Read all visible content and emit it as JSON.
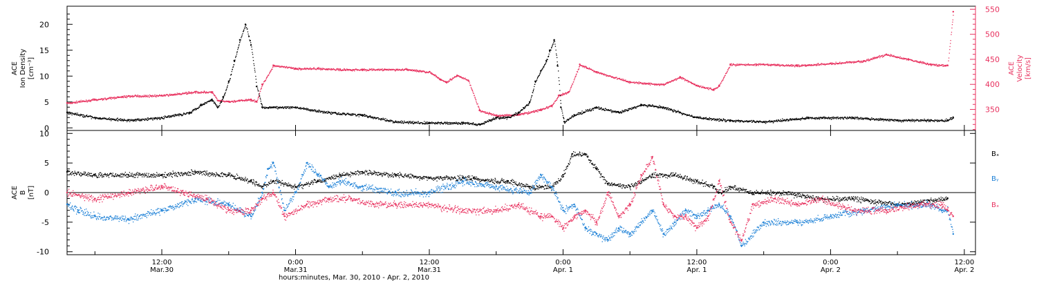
{
  "x_axis": {
    "label": "hours:minutes, Mar. 30, 2010 - Apr.  2, 2010",
    "ticks": [
      {
        "time": "12:00",
        "date": "Mar.30",
        "hours": 12
      },
      {
        "time": "0:00",
        "date": "Mar.31",
        "hours": 24
      },
      {
        "time": "12:00",
        "date": "Mar.31",
        "hours": 36
      },
      {
        "time": "0:00",
        "date": "Apr. 1",
        "hours": 48
      },
      {
        "time": "12:00",
        "date": "Apr. 1",
        "hours": 60
      },
      {
        "time": "0:00",
        "date": "Apr. 2",
        "hours": 72
      },
      {
        "time": "12:00",
        "date": "Apr. 2",
        "hours": 84
      }
    ]
  },
  "colors": {
    "black": "#000000",
    "red": "#e8305e",
    "blue": "#1a7fd6"
  },
  "chart_data": [
    {
      "type": "scatter",
      "panel": "top",
      "x_unit": "hours since Mar. 30, 2010 00:00",
      "xlim": [
        3.5,
        85
      ],
      "left_axis": {
        "label_lines": [
          "ACE",
          "Ion Density",
          "[cm⁻³]"
        ],
        "ylim": [
          -0.5,
          23.5
        ],
        "ticks": [
          0,
          5,
          10,
          15,
          20
        ]
      },
      "right_axis": {
        "label_lines": [
          "ACE",
          "Velocity",
          "[km/s]"
        ],
        "ylim": [
          308,
          556
        ],
        "ticks": [
          350,
          400,
          450,
          500,
          550
        ]
      },
      "series": [
        {
          "name": "",
          "axis": "left",
          "color": "black",
          "x": [
            3.5,
            6,
            9,
            12,
            14.5,
            15.5,
            16.5,
            17,
            17.5,
            18,
            18.5,
            19,
            19.5,
            20,
            20.5,
            21,
            22,
            24,
            27,
            30,
            33,
            36,
            39,
            40.5,
            42,
            43,
            44,
            45,
            45.5,
            46,
            46.5,
            46.8,
            47.2,
            47.5,
            47.8,
            48.1,
            49,
            51,
            53,
            55,
            57,
            58.5,
            60,
            63,
            66,
            70,
            74,
            78,
            81,
            82.5,
            83
          ],
          "y": [
            3,
            2,
            1.5,
            2,
            3,
            4.5,
            5.5,
            4,
            6,
            9,
            13,
            17,
            20,
            16,
            8,
            4,
            4,
            4,
            3,
            2.5,
            1.2,
            1,
            1,
            0.7,
            2,
            2,
            3,
            5,
            9,
            11,
            13,
            15,
            17,
            12,
            4,
            1.2,
            2.5,
            4,
            3,
            4.5,
            4,
            3,
            2,
            1.5,
            1.2,
            2,
            2,
            1.5,
            1.5,
            1.5,
            2
          ]
        },
        {
          "name": "",
          "axis": "right",
          "color": "red",
          "x": [
            3.5,
            6,
            9,
            12,
            15,
            16.5,
            17,
            18,
            20,
            20.5,
            21,
            22,
            24,
            26,
            28,
            30,
            32,
            34,
            36,
            37,
            37.5,
            38.5,
            39.5,
            40.5,
            42,
            44,
            46,
            47,
            47.6,
            48.5,
            49.5,
            51,
            54,
            57,
            58.5,
            60,
            61.5,
            62,
            63,
            66,
            69,
            72,
            75,
            77,
            79,
            81,
            82.5,
            83
          ],
          "y": [
            363,
            370,
            377,
            378,
            385,
            385,
            368,
            366,
            370,
            366,
            400,
            438,
            432,
            432,
            430,
            430,
            430,
            430,
            425,
            410,
            405,
            418,
            408,
            348,
            338,
            340,
            350,
            358,
            378,
            385,
            440,
            425,
            405,
            400,
            415,
            398,
            390,
            398,
            440,
            440,
            438,
            442,
            447,
            460,
            450,
            440,
            438,
            545
          ]
        }
      ]
    },
    {
      "type": "scatter",
      "panel": "bottom",
      "x_unit": "hours since Mar. 30, 2010 00:00",
      "xlim": [
        3.5,
        85
      ],
      "y_axis": {
        "label_lines": [
          "ACE",
          "B",
          "[nT]"
        ],
        "ylim": [
          -10.5,
          10.5
        ],
        "ticks": [
          -10,
          -5,
          0,
          5,
          10
        ]
      },
      "zero_line": true,
      "legend": [
        "Bₓ",
        "Bᵧ",
        "Bₓ"
      ],
      "series": [
        {
          "name": "Bₓ",
          "color": "black",
          "x": [
            3.5,
            6,
            9,
            12,
            15,
            18,
            20,
            21,
            22,
            24,
            26,
            28,
            30,
            33,
            36,
            39,
            40,
            41,
            43,
            45,
            47,
            48,
            48.8,
            50,
            51,
            52,
            54,
            56,
            58,
            60,
            61.5,
            62,
            63,
            65,
            68,
            71,
            74,
            78,
            82.5
          ],
          "y": [
            3.5,
            3,
            3,
            3,
            3.5,
            3,
            2,
            1,
            2,
            1,
            2,
            3,
            3.5,
            3,
            2.5,
            2.5,
            2.5,
            2,
            2,
            1,
            1,
            3,
            6.5,
            6.5,
            4,
            1.5,
            1,
            3,
            3,
            2,
            1,
            0,
            1,
            0,
            0,
            -1,
            -1,
            -2,
            -1
          ]
        },
        {
          "name": "Bᵧ",
          "color": "blue",
          "x": [
            3.5,
            4.5,
            6,
            9,
            12,
            15,
            18,
            19,
            20,
            21,
            21.5,
            22,
            23,
            24,
            25,
            26,
            27,
            28,
            30,
            33,
            36,
            39,
            42,
            45,
            46,
            47,
            48,
            49,
            50,
            51,
            52,
            53,
            54,
            55,
            56,
            57,
            58,
            59,
            60,
            61,
            62,
            63,
            64,
            66,
            69,
            72,
            75,
            78,
            81,
            82,
            82.5,
            83
          ],
          "y": [
            -2,
            -3,
            -4,
            -4.5,
            -3,
            -1,
            -2,
            -3,
            -4,
            0,
            4,
            5,
            -3,
            0,
            5,
            3,
            1,
            2,
            1,
            0,
            0,
            2,
            1,
            0,
            3,
            1,
            -3,
            -2,
            -6,
            -7,
            -8,
            -6,
            -7,
            -5,
            -3,
            -7,
            -5,
            -3,
            -4,
            -3,
            -2,
            -4,
            -9,
            -5,
            -5,
            -4,
            -3,
            -2,
            -2,
            -3,
            -3,
            -7
          ]
        },
        {
          "name": "Bₓ",
          "color": "red",
          "x": [
            3.5,
            6,
            9,
            12,
            14,
            16,
            18,
            20,
            21,
            22,
            23,
            25,
            27,
            29,
            31,
            33,
            36,
            39,
            42,
            44,
            46,
            47,
            48,
            49,
            50,
            51,
            52,
            53,
            54,
            55,
            56,
            57,
            58,
            59,
            60,
            61,
            62,
            63,
            64,
            65,
            67,
            69,
            71,
            74,
            77,
            80,
            82,
            82.5,
            83
          ],
          "y": [
            0,
            -1,
            0,
            1,
            0,
            -1,
            -3,
            -3,
            -1,
            0,
            -4,
            -2,
            -1,
            -1,
            -2,
            -2,
            -2,
            -3,
            -3,
            -2,
            -4,
            -4,
            -6,
            -4,
            -3,
            -5,
            0,
            -4,
            -2,
            3,
            6,
            -2,
            -4,
            -4,
            -6,
            -4,
            2,
            -5,
            -8,
            -2,
            -1,
            -2,
            -1,
            -3,
            -3,
            -2,
            -2,
            -3,
            -4
          ]
        }
      ]
    }
  ]
}
